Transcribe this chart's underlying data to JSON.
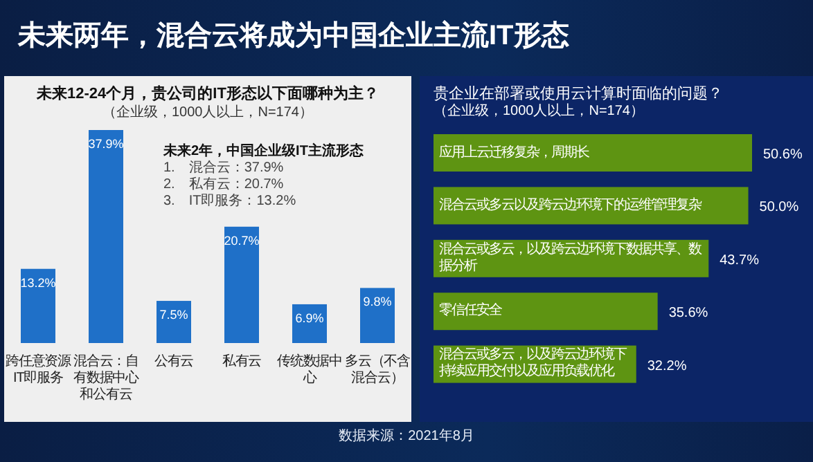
{
  "chart_data": [
    {
      "type": "other",
      "title": "未来两年，混合云将成为中国企业主流IT形态",
      "annotations": [
        "数据来源：2021年8月"
      ]
    },
    {
      "type": "bar",
      "title": "未来12-24个月，贵公司的IT形态以下面哪种为主？",
      "subtitle": "（企业级，1000人以上，N=174）",
      "categories": [
        "跨任意资源IT即服务",
        "混合云：自有数据中心和公有云",
        "公有云",
        "私有云",
        "传统数据中心",
        "多云（不含混合云）"
      ],
      "values": [
        13.2,
        37.9,
        7.5,
        20.7,
        6.9,
        9.8
      ],
      "color": "#1f70c8",
      "value_labels": [
        "13.2%",
        "37.9%",
        "7.5%",
        "20.7%",
        "6.9%",
        "9.8%"
      ],
      "annotations": [
        "未来2年，中国企业级IT主流形态",
        "1.　混合云：37.9%",
        "2.　私有云：20.7%",
        "3.　IT即服务：13.2%"
      ]
    },
    {
      "type": "bar",
      "orientation": "horizontal",
      "title": "贵企业在部署或使用云计算时面临的问题？",
      "subtitle": "（企业级，1000人以上，N=174）",
      "categories": [
        "应用上云迁移复杂，周期长",
        "混合云或多云以及跨云边环境下的运维管理复杂",
        "混合云或多云，以及跨云边环境下数据共享、数据分析",
        "零信任安全",
        "混合云或多云，以及跨云边环境下持续应用交付以及应用负载优化"
      ],
      "values": [
        50.6,
        50.0,
        43.7,
        35.6,
        32.2
      ],
      "color": "#5e9412",
      "value_labels": [
        "50.6%",
        "50.0%",
        "43.7%",
        "35.6%",
        "32.2%"
      ]
    }
  ]
}
